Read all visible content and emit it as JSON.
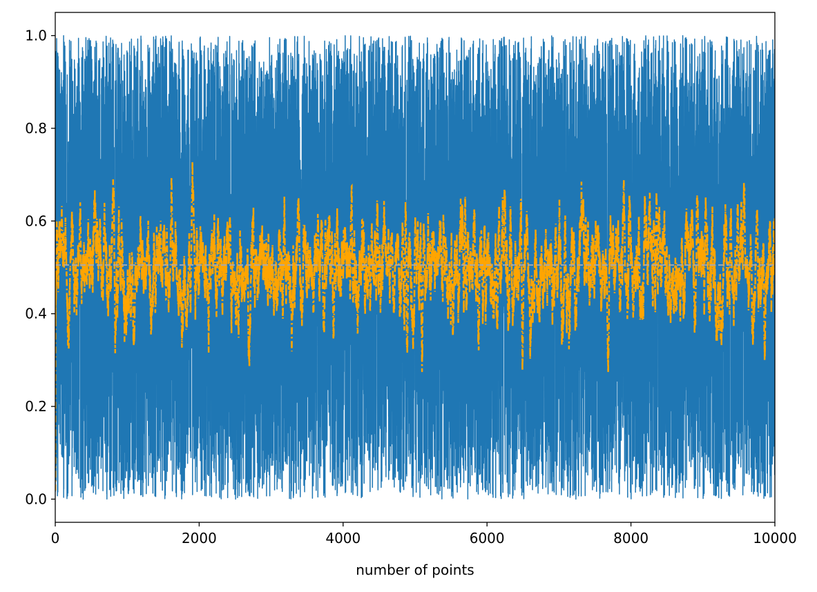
{
  "chart_data": {
    "type": "line",
    "title": "",
    "xlabel": "number of points",
    "ylabel": "",
    "xlim": [
      0,
      10000
    ],
    "ylim": [
      -0.05,
      1.05
    ],
    "xticks": [
      0,
      2000,
      4000,
      6000,
      8000,
      10000
    ],
    "xtick_labels": [
      "0",
      "2000",
      "4000",
      "6000",
      "8000",
      "10000"
    ],
    "yticks": [
      0.0,
      0.2,
      0.4,
      0.6,
      0.8,
      1.0
    ],
    "ytick_labels": [
      "0.0",
      "0.2",
      "0.4",
      "0.6",
      "0.8",
      "1.0"
    ],
    "grid": false,
    "legend": "none",
    "n_points": 10000,
    "series": [
      {
        "style": "solid",
        "color": "#1f77b4",
        "description_values": "uniform random samples in [0, 1]",
        "value_range": [
          0.0,
          1.0
        ]
      },
      {
        "style": "dashdot",
        "color": "#ffa500",
        "description_values": "moving average of the random samples",
        "value_range": [
          0.2,
          0.83
        ]
      },
      {
        "style": "dashed",
        "color": "#a9a9a9",
        "constant_value": 0.505
      }
    ]
  }
}
